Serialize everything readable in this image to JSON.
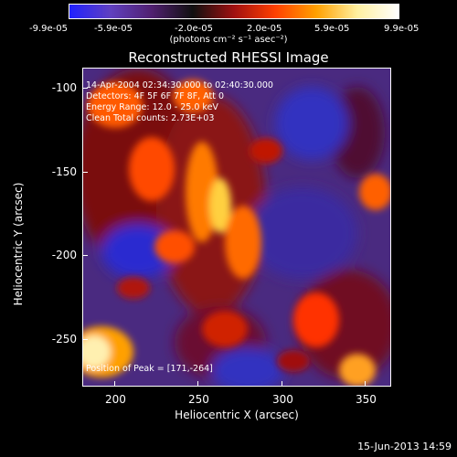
{
  "colorbar": {
    "ticks": [
      "-9.9e-05",
      "-5.9e-05",
      "-2.0e-05",
      "2.0e-05",
      "5.9e-05",
      "9.9e-05"
    ],
    "units": "(photons cm⁻² s⁻¹ asec⁻²)",
    "colors": [
      "#2020ff",
      "#6040c0",
      "#502070",
      "#101010",
      "#a01010",
      "#ff4000",
      "#ffa000",
      "#fff0a0",
      "#ffffff"
    ]
  },
  "title": "Reconstructed RHESSI Image",
  "info": {
    "time": "14-Apr-2004 02:34:30.000 to 02:40:30.000",
    "detectors": "Detectors: 4F 5F 6F 7F 8F, Att 0",
    "energy": "Energy Range: 12.0 - 25.0 keV",
    "clean": "Clean    Total counts: 2.73E+03",
    "peak": "Position of Peak = [171,-264]"
  },
  "axes": {
    "xlabel": "Heliocentric X (arcsec)",
    "ylabel": "Heliocentric Y (arcsec)",
    "xticks": [
      "200",
      "250",
      "300",
      "350"
    ],
    "yticks": [
      "-100",
      "-150",
      "-200",
      "-250"
    ]
  },
  "footer": {
    "date": "15-Jun-2013 14:59"
  }
}
